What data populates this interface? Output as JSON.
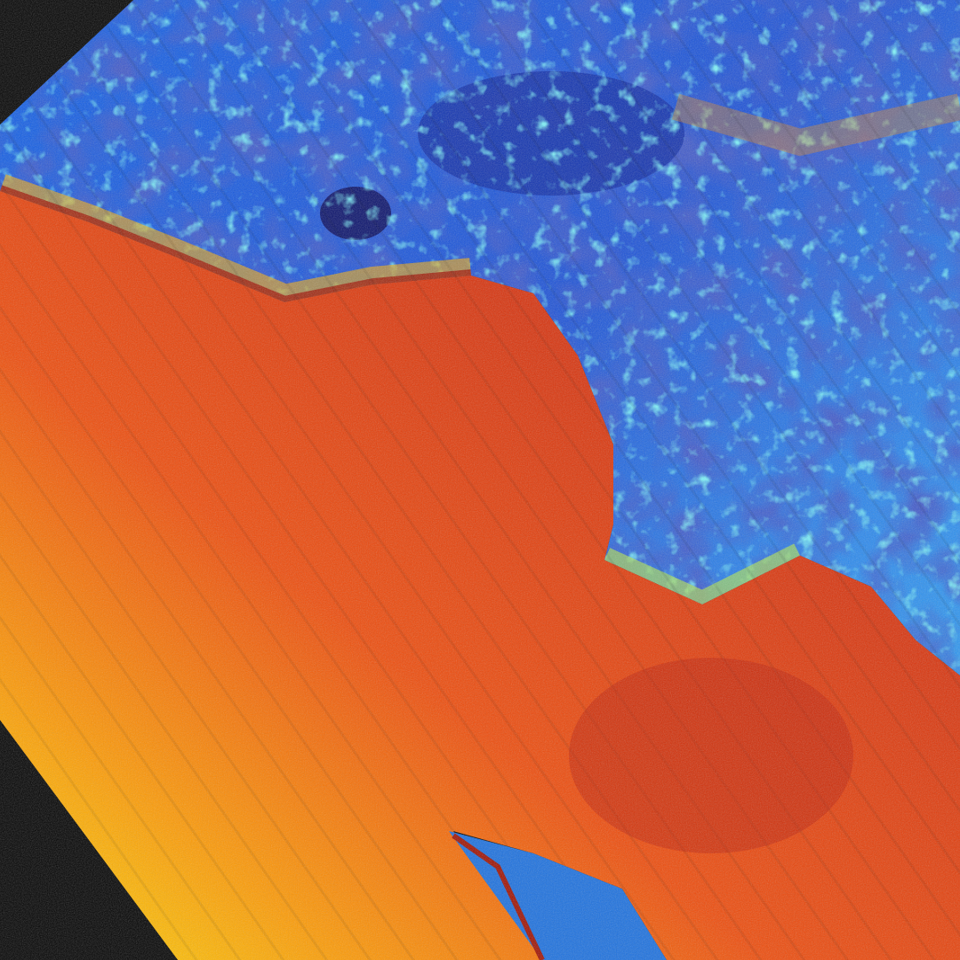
{
  "image": {
    "kind": "false-color-satellite-raster",
    "colormap": "jet",
    "colors": {
      "nodata": "#000000",
      "water_main": "#e0380a",
      "water_dark": "#c82008",
      "water_light": "#ffd000",
      "land_main": "#1a6cf0",
      "land_dark": "#0a1a9a",
      "land_cyan": "#30e0f0",
      "coast_edge": "#a01000"
    }
  }
}
